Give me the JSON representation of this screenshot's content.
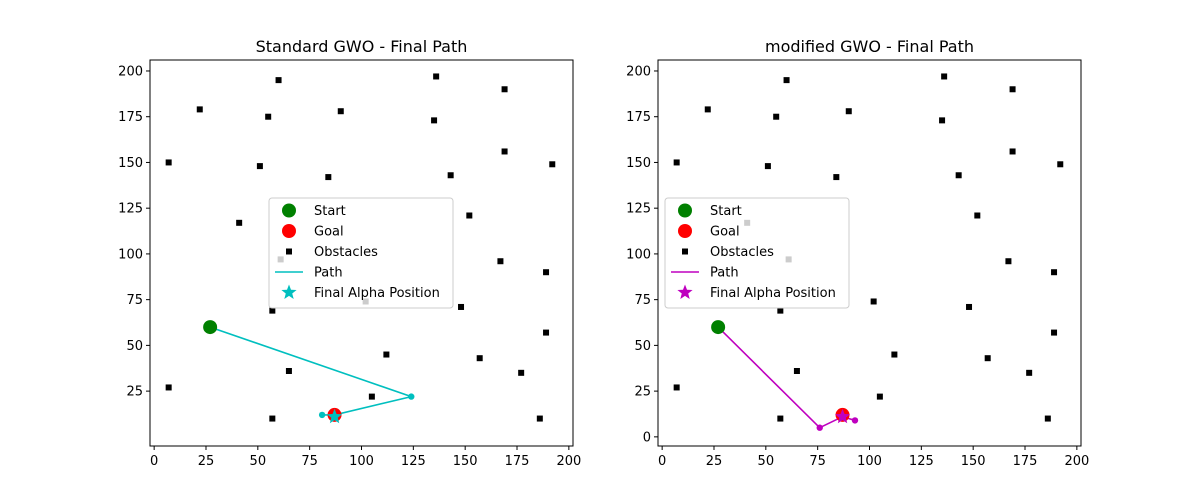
{
  "chart_data": [
    {
      "type": "scatter",
      "title": "Standard GWO - Final Path",
      "xlabel": "",
      "ylabel": "",
      "xlim": [
        -2,
        202
      ],
      "ylim": [
        -5,
        206
      ],
      "xticks": [
        0,
        25,
        50,
        75,
        100,
        125,
        150,
        175,
        200
      ],
      "yticks": [
        25,
        50,
        75,
        100,
        125,
        150,
        175,
        200
      ],
      "grid": false,
      "legend_position": "center",
      "legend": [
        "Start",
        "Goal",
        "Obstacles",
        "Path",
        "Final Alpha Position"
      ],
      "start": {
        "x": 27,
        "y": 60
      },
      "goal": {
        "x": 87,
        "y": 12
      },
      "final_alpha": {
        "x": 87,
        "y": 11
      },
      "path": [
        {
          "x": 27,
          "y": 60
        },
        {
          "x": 124,
          "y": 22
        },
        {
          "x": 87,
          "y": 12
        },
        {
          "x": 81,
          "y": 12
        }
      ],
      "obstacles": [
        {
          "x": 60,
          "y": 195
        },
        {
          "x": 136,
          "y": 197
        },
        {
          "x": 169,
          "y": 190
        },
        {
          "x": 22,
          "y": 179
        },
        {
          "x": 55,
          "y": 175
        },
        {
          "x": 90,
          "y": 178
        },
        {
          "x": 135,
          "y": 173
        },
        {
          "x": 169,
          "y": 156
        },
        {
          "x": 7,
          "y": 150
        },
        {
          "x": 51,
          "y": 148
        },
        {
          "x": 84,
          "y": 142
        },
        {
          "x": 143,
          "y": 143
        },
        {
          "x": 192,
          "y": 149
        },
        {
          "x": 152,
          "y": 121
        },
        {
          "x": 41,
          "y": 117
        },
        {
          "x": 167,
          "y": 96
        },
        {
          "x": 189,
          "y": 90
        },
        {
          "x": 102,
          "y": 74
        },
        {
          "x": 148,
          "y": 71
        },
        {
          "x": 57,
          "y": 69
        },
        {
          "x": 189,
          "y": 57
        },
        {
          "x": 112,
          "y": 45
        },
        {
          "x": 157,
          "y": 43
        },
        {
          "x": 65,
          "y": 36
        },
        {
          "x": 177,
          "y": 35
        },
        {
          "x": 7,
          "y": 27
        },
        {
          "x": 105,
          "y": 22
        },
        {
          "x": 57,
          "y": 10
        },
        {
          "x": 186,
          "y": 10
        },
        {
          "x": 61,
          "y": 97
        }
      ]
    },
    {
      "type": "scatter",
      "title": "modified GWO - Final Path",
      "xlabel": "",
      "ylabel": "",
      "xlim": [
        -2,
        202
      ],
      "ylim": [
        -5,
        206
      ],
      "xticks": [
        0,
        25,
        50,
        75,
        100,
        125,
        150,
        175,
        200
      ],
      "yticks": [
        0,
        25,
        50,
        75,
        100,
        125,
        150,
        175,
        200
      ],
      "grid": false,
      "legend_position": "center-left",
      "legend": [
        "Start",
        "Goal",
        "Obstacles",
        "Path",
        "Final Alpha Position"
      ],
      "start": {
        "x": 27,
        "y": 60
      },
      "goal": {
        "x": 87,
        "y": 12
      },
      "final_alpha": {
        "x": 87,
        "y": 11
      },
      "path": [
        {
          "x": 27,
          "y": 60
        },
        {
          "x": 76,
          "y": 5
        },
        {
          "x": 87,
          "y": 11
        },
        {
          "x": 93,
          "y": 9
        }
      ],
      "obstacles": [
        {
          "x": 60,
          "y": 195
        },
        {
          "x": 136,
          "y": 197
        },
        {
          "x": 169,
          "y": 190
        },
        {
          "x": 22,
          "y": 179
        },
        {
          "x": 55,
          "y": 175
        },
        {
          "x": 90,
          "y": 178
        },
        {
          "x": 135,
          "y": 173
        },
        {
          "x": 169,
          "y": 156
        },
        {
          "x": 7,
          "y": 150
        },
        {
          "x": 51,
          "y": 148
        },
        {
          "x": 84,
          "y": 142
        },
        {
          "x": 143,
          "y": 143
        },
        {
          "x": 192,
          "y": 149
        },
        {
          "x": 152,
          "y": 121
        },
        {
          "x": 41,
          "y": 117
        },
        {
          "x": 167,
          "y": 96
        },
        {
          "x": 189,
          "y": 90
        },
        {
          "x": 102,
          "y": 74
        },
        {
          "x": 148,
          "y": 71
        },
        {
          "x": 57,
          "y": 69
        },
        {
          "x": 189,
          "y": 57
        },
        {
          "x": 112,
          "y": 45
        },
        {
          "x": 157,
          "y": 43
        },
        {
          "x": 65,
          "y": 36
        },
        {
          "x": 177,
          "y": 35
        },
        {
          "x": 7,
          "y": 27
        },
        {
          "x": 105,
          "y": 22
        },
        {
          "x": 57,
          "y": 10
        },
        {
          "x": 186,
          "y": 10
        },
        {
          "x": 61,
          "y": 97
        }
      ]
    }
  ],
  "colors": {
    "start": "#008000",
    "goal": "#ff0000",
    "obstacles": "#000000",
    "path_standard": "#00bfbf",
    "path_modified": "#bf00bf",
    "legend_border": "#cccccc"
  }
}
